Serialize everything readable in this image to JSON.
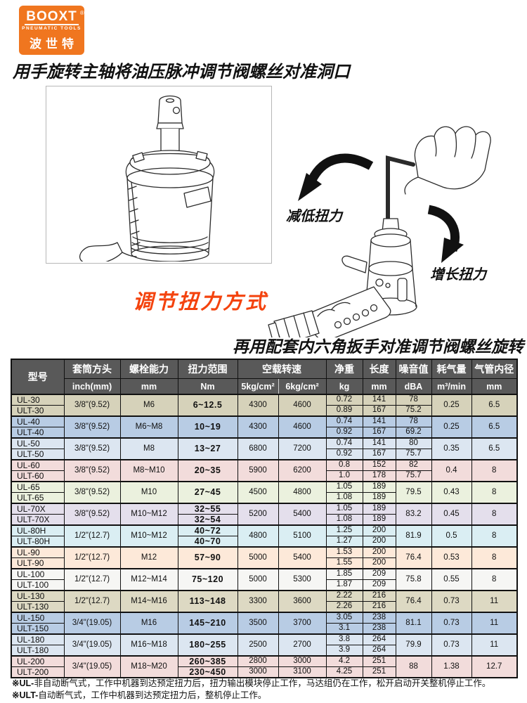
{
  "logo": {
    "brand": "BOOXT",
    "registered": "®",
    "subtitle": "PNEUMATIC TOOLS",
    "chinese": "波世特",
    "bg_color": "#f0761f"
  },
  "instructions": {
    "step1": "用手旋转主轴将油压脉冲调节阀螺丝对准洞口",
    "step2": "再用配套内六角扳手对准调节阀螺丝旋转",
    "adjust_title": "调节扭力方式",
    "adjust_title_color": "#f4430e",
    "decrease_label": "减低扭力",
    "increase_label": "增长扭力"
  },
  "table": {
    "header_bg": "#595959",
    "header": {
      "model": "型号",
      "col_names": [
        "套筒方头",
        "螺栓能力",
        "扭力范围",
        "空载转速",
        "净重",
        "长度",
        "噪音值",
        "耗气量",
        "气管内径"
      ],
      "units": [
        "inch(mm)",
        "mm",
        "Nm",
        "5kg/cm²",
        "6kg/cm²",
        "kg",
        "mm",
        "dBA",
        "m³/min",
        "mm"
      ]
    },
    "groups": [
      {
        "color": "#d6d2ba",
        "models": [
          "UL-30",
          "ULT-30"
        ],
        "drive": "3/8\"(9.52)",
        "bolt": "M6",
        "torque": [
          "6~12.5"
        ],
        "speed5": [
          "4300"
        ],
        "speed6": [
          "4600"
        ],
        "weight": [
          "0.72",
          "0.89"
        ],
        "length": [
          "141",
          "167"
        ],
        "noise": [
          "78",
          "75.2"
        ],
        "air": "0.25",
        "hose": "6.5"
      },
      {
        "color": "#b8cce4",
        "models": [
          "UL-40",
          "ULT-40"
        ],
        "drive": "3/8\"(9.52)",
        "bolt": "M6~M8",
        "torque": [
          "10~19"
        ],
        "speed5": [
          "4300"
        ],
        "speed6": [
          "4600"
        ],
        "weight": [
          "0.74",
          "0.92"
        ],
        "length": [
          "141",
          "167"
        ],
        "noise": [
          "78",
          "69.2"
        ],
        "air": "0.25",
        "hose": "6.5"
      },
      {
        "color": "#dce6f1",
        "models": [
          "UL-50",
          "ULT-50"
        ],
        "drive": "3/8\"(9.52)",
        "bolt": "M8",
        "torque": [
          "13~27"
        ],
        "speed5": [
          "6800"
        ],
        "speed6": [
          "7200"
        ],
        "weight": [
          "0.74",
          "0.92"
        ],
        "length": [
          "141",
          "167"
        ],
        "noise": [
          "80",
          "75.7"
        ],
        "air": "0.35",
        "hose": "6.5"
      },
      {
        "color": "#f2dcdb",
        "models": [
          "UL-60",
          "ULT-60"
        ],
        "drive": "3/8\"(9.52)",
        "bolt": "M8~M10",
        "torque": [
          "20~35"
        ],
        "speed5": [
          "5900"
        ],
        "speed6": [
          "6200"
        ],
        "weight": [
          "0.8",
          "1.0"
        ],
        "length": [
          "152",
          "178"
        ],
        "noise": [
          "82",
          "75.7"
        ],
        "air": "0.4",
        "hose": "8"
      },
      {
        "color": "#ebf1de",
        "models": [
          "UL-65",
          "ULT-65"
        ],
        "drive": "3/8\"(9.52)",
        "bolt": "M10",
        "torque": [
          "27~45"
        ],
        "speed5": [
          "4500"
        ],
        "speed6": [
          "4800"
        ],
        "weight": [
          "1.05",
          "1.08"
        ],
        "length": [
          "189",
          "189"
        ],
        "noise": [
          "79.5"
        ],
        "air": "0.43",
        "hose": "8"
      },
      {
        "color": "#e4dfec",
        "models": [
          "UL-70X",
          "ULT-70X"
        ],
        "drive": "3/8\"(9.52)",
        "bolt": "M10~M12",
        "torque": [
          "32~55",
          "32~54"
        ],
        "speed5": [
          "5200"
        ],
        "speed6": [
          "5400"
        ],
        "weight": [
          "1.05",
          "1.08"
        ],
        "length": [
          "189",
          "189"
        ],
        "noise": [
          "83.2"
        ],
        "air": "0.45",
        "hose": "8"
      },
      {
        "color": "#daeef3",
        "models": [
          "UL-80H",
          "ULT-80H"
        ],
        "drive": "1/2\"(12.7)",
        "bolt": "M10~M12",
        "torque": [
          "40~72",
          "40~70"
        ],
        "speed5": [
          "4800"
        ],
        "speed6": [
          "5100"
        ],
        "weight": [
          "1.25",
          "1.27"
        ],
        "length": [
          "200",
          "200"
        ],
        "noise": [
          "81.9"
        ],
        "air": "0.5",
        "hose": "8"
      },
      {
        "color": "#fde9d9",
        "models": [
          "UL-90",
          "ULT-90"
        ],
        "drive": "1/2\"(12.7)",
        "bolt": "M12",
        "torque": [
          "57~90"
        ],
        "speed5": [
          "5000"
        ],
        "speed6": [
          "5400"
        ],
        "weight": [
          "1.53",
          "1.55"
        ],
        "length": [
          "200",
          "200"
        ],
        "noise": [
          "76.4"
        ],
        "air": "0.53",
        "hose": "8"
      },
      {
        "color": "#f6f6f4",
        "models": [
          "UL-100",
          "ULT-100"
        ],
        "drive": "1/2\"(12.7)",
        "bolt": "M12~M14",
        "torque": [
          "75~120"
        ],
        "speed5": [
          "5000"
        ],
        "speed6": [
          "5300"
        ],
        "weight": [
          "1.85",
          "1.87"
        ],
        "length": [
          "209",
          "209"
        ],
        "noise": [
          "75.8"
        ],
        "air": "0.55",
        "hose": "8"
      },
      {
        "color": "#ddd9c3",
        "models": [
          "UL-130",
          "ULT-130"
        ],
        "drive": "1/2\"(12.7)",
        "bolt": "M14~M16",
        "torque": [
          "113~148"
        ],
        "speed5": [
          "3300"
        ],
        "speed6": [
          "3600"
        ],
        "weight": [
          "2.22",
          "2.26"
        ],
        "length": [
          "216",
          "216"
        ],
        "noise": [
          "76.4"
        ],
        "air": "0.73",
        "hose": "11"
      },
      {
        "color": "#b8cce4",
        "models": [
          "UL-150",
          "ULT-150"
        ],
        "drive": "3/4\"(19.05)",
        "bolt": "M16",
        "torque": [
          "145~210"
        ],
        "speed5": [
          "3500"
        ],
        "speed6": [
          "3700"
        ],
        "weight": [
          "3.05",
          "3.1"
        ],
        "length": [
          "238",
          "238"
        ],
        "noise": [
          "81.1"
        ],
        "air": "0.73",
        "hose": "11"
      },
      {
        "color": "#dce6f1",
        "models": [
          "UL-180",
          "ULT-180"
        ],
        "drive": "3/4\"(19.05)",
        "bolt": "M16~M18",
        "torque": [
          "180~255"
        ],
        "speed5": [
          "2500"
        ],
        "speed6": [
          "2700"
        ],
        "weight": [
          "3.8",
          "3.9"
        ],
        "length": [
          "264",
          "264"
        ],
        "noise": [
          "79.9"
        ],
        "air": "0.73",
        "hose": "11"
      },
      {
        "color": "#f2dcdb",
        "models": [
          "UL-200",
          "ULT-200"
        ],
        "drive": "3/4\"(19.05)",
        "bolt": "M18~M20",
        "torque": [
          "260~385",
          "230~450"
        ],
        "speed5": [
          "2800",
          "3000"
        ],
        "speed6": [
          "3000",
          "3100"
        ],
        "weight": [
          "4.2",
          "4.25"
        ],
        "length": [
          "251",
          "251"
        ],
        "noise": [
          "88"
        ],
        "air": "1.38",
        "hose": "12.7"
      }
    ]
  },
  "footnotes": [
    {
      "prefix": "※UL-",
      "text": "非自动断气式，工作中机器到达预定扭力后，扭力输出模块停止工作，马达组仍在工作，松开启动开关整机停止工作。"
    },
    {
      "prefix": "※ULT-",
      "text": "自动断气式，工作中机器到达预定扭力后，整机停止工作。"
    }
  ]
}
